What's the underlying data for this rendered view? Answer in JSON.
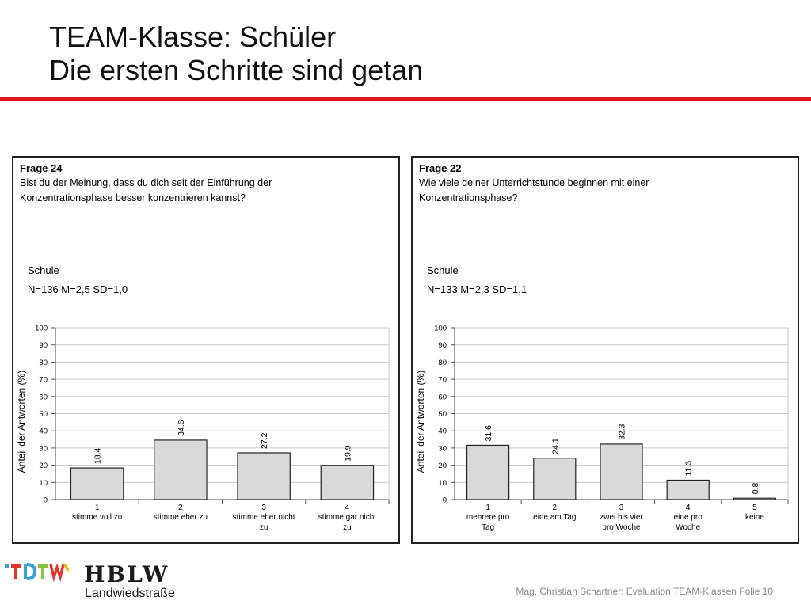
{
  "slide": {
    "title_line1": "TEAM-Klasse: Schüler",
    "title_line2": "Die ersten Schritte sind getan",
    "accent_color": "#d9141a",
    "footer": "Mag. Christian Schartner: Evaluation TEAM-Klassen Folie 10",
    "logo": {
      "mark": "TDTW",
      "name": "HBLW",
      "place": "Landwiedstraße"
    }
  },
  "chart_data": [
    {
      "type": "bar",
      "question_number": "Frage 24",
      "question": "Bist du der Meinung, dass du dich seit der Einführung der Konzentrationsphase besser konzentrieren kannst?",
      "question_lines": [
        "Bist du der Meinung, dass du dich seit der Einführung der",
        "Konzentrationsphase besser konzentrieren kannst?"
      ],
      "group": "Schule",
      "stats": "N=136 M=2,5 SD=1,0",
      "ylabel": "Anteil der Antworten (%)",
      "ylim": [
        0,
        100
      ],
      "yticks": [
        0,
        10,
        20,
        30,
        40,
        50,
        60,
        70,
        80,
        90,
        100
      ],
      "grid": true,
      "categories": [
        {
          "num": "1",
          "label": [
            "stimme voll zu"
          ]
        },
        {
          "num": "2",
          "label": [
            "stimme eher zu"
          ]
        },
        {
          "num": "3",
          "label": [
            "stimme eher nicht",
            "zu"
          ]
        },
        {
          "num": "4",
          "label": [
            "stimme gar nicht",
            "zu"
          ]
        }
      ],
      "values": [
        18.4,
        34.6,
        27.2,
        19.9
      ],
      "value_labels": [
        "18.4",
        "34.6",
        "27.2",
        "19.9"
      ],
      "bar_color": "#d9d9d9"
    },
    {
      "type": "bar",
      "question_number": "Frage 22",
      "question": "Wie viele deiner Unterrichtstunde beginnen mit einer Konzentrationsphase?",
      "question_lines": [
        "Wie viele deiner Unterrichtstunde beginnen mit einer",
        "Konzentrationsphase?"
      ],
      "group": "Schule",
      "stats": "N=133 M=2,3 SD=1,1",
      "ylabel": "Anteil der Antworten (%)",
      "ylim": [
        0,
        100
      ],
      "yticks": [
        0,
        10,
        20,
        30,
        40,
        50,
        60,
        70,
        80,
        90,
        100
      ],
      "grid": true,
      "categories": [
        {
          "num": "1",
          "label": [
            "mehrere pro",
            "Tag"
          ]
        },
        {
          "num": "2",
          "label": [
            "eine am Tag"
          ]
        },
        {
          "num": "3",
          "label": [
            "zwei bis vier",
            "pro Woche"
          ]
        },
        {
          "num": "4",
          "label": [
            "eine pro",
            "Woche"
          ]
        },
        {
          "num": "5",
          "label": [
            "keine"
          ]
        }
      ],
      "values": [
        31.6,
        24.1,
        32.3,
        11.3,
        0.8
      ],
      "value_labels": [
        "31.6",
        "24.1",
        "32.3",
        "11.3",
        "0.8"
      ],
      "bar_color": "#d9d9d9"
    }
  ]
}
